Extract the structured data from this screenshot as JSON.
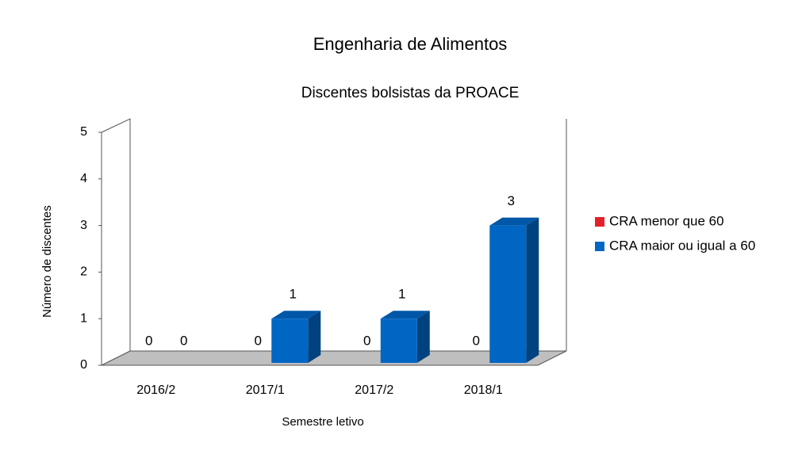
{
  "chart_data": {
    "type": "bar3d",
    "title": "Engenharia de Alimentos",
    "subtitle": "Discentes bolsistas da PROACE",
    "x_label": "Semestre letivo",
    "y_label": "Número de discentes",
    "categories": [
      "2016/2",
      "2017/1",
      "2017/2",
      "2018/1"
    ],
    "series": [
      {
        "name": "CRA menor que 60",
        "color": "#e3202a",
        "values": [
          0,
          0,
          0,
          0
        ]
      },
      {
        "name": "CRA maior ou igual a 60",
        "color": "#0066c4",
        "values": [
          0,
          1,
          1,
          3
        ]
      }
    ],
    "ylim": [
      0,
      5
    ],
    "yticks": [
      0,
      1,
      2,
      3,
      4,
      5
    ],
    "legend": "right"
  }
}
